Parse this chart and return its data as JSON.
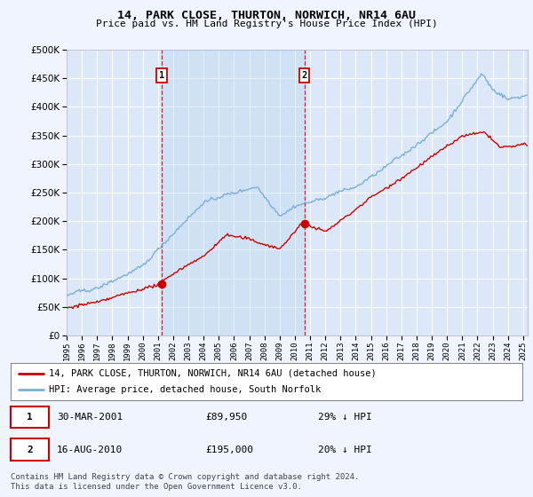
{
  "title": "14, PARK CLOSE, THURTON, NORWICH, NR14 6AU",
  "subtitle": "Price paid vs. HM Land Registry's House Price Index (HPI)",
  "background_color": "#f0f4ff",
  "plot_bg_color": "#dce8f8",
  "grid_color": "#ffffff",
  "hpi_color": "#7bafd4",
  "hpi_linewidth": 1.0,
  "price_color": "#cc0000",
  "price_linewidth": 1.0,
  "vline_color": "#cc0000",
  "shade_color": "#c8ddf0",
  "ylim": [
    0,
    500000
  ],
  "yticks": [
    0,
    50000,
    100000,
    150000,
    200000,
    250000,
    300000,
    350000,
    400000,
    450000,
    500000
  ],
  "sale1_year": 2001.25,
  "sale1_price": 89950,
  "sale2_year": 2010.62,
  "sale2_price": 195000,
  "legend_house": "14, PARK CLOSE, THURTON, NORWICH, NR14 6AU (detached house)",
  "legend_hpi": "HPI: Average price, detached house, South Norfolk",
  "xstart": 1995,
  "xend": 2025.3
}
